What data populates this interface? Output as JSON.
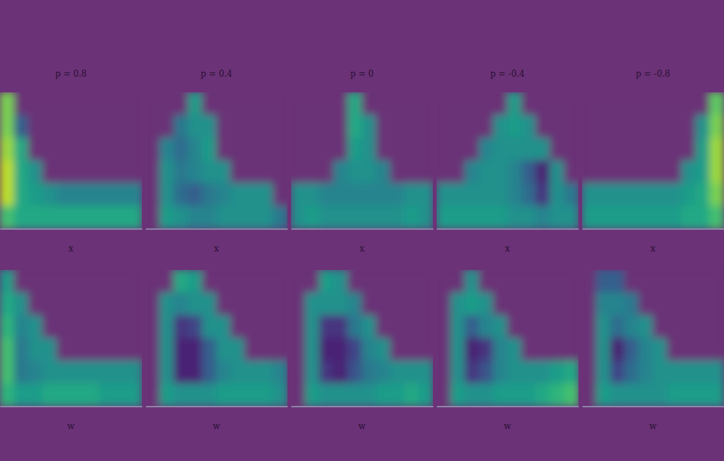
{
  "chart_data": [
    {
      "type": "heatmap",
      "title": "p = 0.8",
      "x_label": "x",
      "color": "viridis",
      "zlim": [
        0,
        1
      ],
      "tick_labels": false,
      "cells": [
        [
          0.8,
          0,
          0,
          0,
          0,
          0,
          0,
          0,
          0,
          0
        ],
        [
          0.8,
          0.3,
          0,
          0,
          0,
          0,
          0,
          0,
          0,
          0
        ],
        [
          0.85,
          0.6,
          0,
          0,
          0,
          0,
          0,
          0,
          0,
          0
        ],
        [
          0.9,
          0.6,
          0.5,
          0,
          0,
          0,
          0,
          0,
          0,
          0
        ],
        [
          0.9,
          0.6,
          0.55,
          0.5,
          0.45,
          0.45,
          0.45,
          0.45,
          0.45,
          0.45
        ],
        [
          0.7,
          0.6,
          0.6,
          0.6,
          0.6,
          0.6,
          0.6,
          0.6,
          0.6,
          0.6
        ]
      ]
    },
    {
      "type": "heatmap",
      "title": "p = 0.4",
      "x_label": "x",
      "color": "viridis",
      "zlim": [
        0,
        1
      ],
      "tick_labels": false,
      "cells": [
        [
          0,
          0,
          0,
          0.55,
          0,
          0,
          0,
          0,
          0,
          0
        ],
        [
          0,
          0,
          0.4,
          0.5,
          0.5,
          0,
          0,
          0,
          0,
          0
        ],
        [
          0,
          0.45,
          0.35,
          0.45,
          0.55,
          0,
          0,
          0,
          0,
          0
        ],
        [
          0,
          0.5,
          0.4,
          0.45,
          0.5,
          0.5,
          0,
          0,
          0,
          0
        ],
        [
          0,
          0.5,
          0.35,
          0.3,
          0.4,
          0.45,
          0.5,
          0.5,
          0.5,
          0
        ],
        [
          0,
          0.55,
          0.5,
          0.45,
          0.45,
          0.5,
          0.5,
          0.5,
          0.5,
          0.4
        ]
      ]
    },
    {
      "type": "heatmap",
      "title": "p = 0",
      "x_label": "x",
      "color": "viridis",
      "zlim": [
        0,
        1
      ],
      "tick_labels": false,
      "cells": [
        [
          0,
          0,
          0,
          0,
          0.6,
          0,
          0,
          0,
          0,
          0
        ],
        [
          0,
          0,
          0,
          0,
          0.6,
          0.5,
          0,
          0,
          0,
          0
        ],
        [
          0,
          0,
          0,
          0,
          0.55,
          0.5,
          0,
          0,
          0,
          0
        ],
        [
          0,
          0,
          0,
          0.45,
          0.5,
          0.5,
          0.45,
          0,
          0,
          0
        ],
        [
          0.5,
          0.5,
          0.45,
          0.45,
          0.45,
          0.45,
          0.45,
          0.45,
          0.5,
          0.5
        ],
        [
          0.5,
          0.55,
          0.5,
          0.5,
          0.5,
          0.5,
          0.5,
          0.5,
          0.55,
          0.5
        ]
      ]
    },
    {
      "type": "heatmap",
      "title": "p = -0.4",
      "x_label": "x",
      "color": "viridis",
      "zlim": [
        0,
        1
      ],
      "tick_labels": false,
      "cells": [
        [
          0,
          0,
          0,
          0,
          0,
          0.55,
          0,
          0,
          0,
          0
        ],
        [
          0,
          0,
          0,
          0,
          0.5,
          0.55,
          0.5,
          0,
          0,
          0
        ],
        [
          0,
          0,
          0,
          0.45,
          0.5,
          0.5,
          0.5,
          0.5,
          0,
          0
        ],
        [
          0,
          0,
          0.45,
          0.5,
          0.5,
          0.45,
          0.3,
          0.1,
          0.5,
          0
        ],
        [
          0.5,
          0.5,
          0.5,
          0.5,
          0.5,
          0.45,
          0.35,
          0.15,
          0.5,
          0.4
        ],
        [
          0.55,
          0.55,
          0.55,
          0.55,
          0.55,
          0.5,
          0.5,
          0.45,
          0.5,
          0.5
        ]
      ]
    },
    {
      "type": "heatmap",
      "title": "p = -0.8",
      "x_label": "x",
      "color": "viridis",
      "zlim": [
        0,
        1
      ],
      "tick_labels": false,
      "cells": [
        [
          0,
          0,
          0,
          0,
          0,
          0,
          0,
          0,
          0,
          0.75
        ],
        [
          0,
          0,
          0,
          0,
          0,
          0,
          0,
          0,
          0.5,
          0.8
        ],
        [
          0,
          0,
          0,
          0,
          0,
          0,
          0,
          0,
          0.55,
          0.85
        ],
        [
          0,
          0,
          0,
          0,
          0,
          0,
          0,
          0.5,
          0.55,
          0.85
        ],
        [
          0.5,
          0.5,
          0.5,
          0.5,
          0.5,
          0.5,
          0.5,
          0.55,
          0.6,
          0.8
        ],
        [
          0.55,
          0.55,
          0.55,
          0.55,
          0.55,
          0.55,
          0.55,
          0.6,
          0.6,
          0.7
        ]
      ]
    },
    {
      "type": "heatmap",
      "x_label": "w",
      "color": "viridis",
      "zlim": [
        0,
        1
      ],
      "tick_labels": false,
      "cells": [
        [
          0.55,
          0,
          0,
          0,
          0,
          0,
          0,
          0,
          0,
          0
        ],
        [
          0.6,
          0.5,
          0,
          0,
          0,
          0,
          0,
          0,
          0,
          0
        ],
        [
          0.65,
          0.45,
          0.5,
          0,
          0,
          0,
          0,
          0,
          0,
          0
        ],
        [
          0.7,
          0.4,
          0.5,
          0.5,
          0,
          0,
          0,
          0,
          0,
          0
        ],
        [
          0.7,
          0.4,
          0.45,
          0.5,
          0.5,
          0.5,
          0.5,
          0.5,
          0.5,
          0.5
        ],
        [
          0.65,
          0.55,
          0.55,
          0.6,
          0.6,
          0.6,
          0.6,
          0.55,
          0.55,
          0.55
        ]
      ]
    },
    {
      "type": "heatmap",
      "x_label": "w",
      "color": "viridis",
      "zlim": [
        0,
        1
      ],
      "tick_labels": false,
      "cells": [
        [
          0,
          0,
          0.6,
          0.55,
          0,
          0,
          0,
          0,
          0,
          0
        ],
        [
          0,
          0.5,
          0.45,
          0.5,
          0.5,
          0,
          0,
          0,
          0,
          0
        ],
        [
          0,
          0.5,
          0.15,
          0.2,
          0.5,
          0.5,
          0,
          0,
          0,
          0
        ],
        [
          0,
          0.5,
          0.1,
          0.1,
          0.3,
          0.5,
          0.5,
          0,
          0,
          0
        ],
        [
          0,
          0.5,
          0.1,
          0.1,
          0.3,
          0.45,
          0.5,
          0.5,
          0.5,
          0.45
        ],
        [
          0,
          0.55,
          0.5,
          0.5,
          0.5,
          0.55,
          0.55,
          0.55,
          0.55,
          0.5
        ]
      ]
    },
    {
      "type": "heatmap",
      "x_label": "w",
      "color": "viridis",
      "zlim": [
        0,
        1
      ],
      "tick_labels": false,
      "cells": [
        [
          0,
          0,
          0.55,
          0.5,
          0,
          0,
          0,
          0,
          0,
          0
        ],
        [
          0,
          0.5,
          0.5,
          0.5,
          0.45,
          0,
          0,
          0,
          0,
          0
        ],
        [
          0,
          0.5,
          0.15,
          0.15,
          0.4,
          0.5,
          0,
          0,
          0,
          0
        ],
        [
          0,
          0.5,
          0.1,
          0.1,
          0.2,
          0.45,
          0.5,
          0,
          0,
          0
        ],
        [
          0,
          0.5,
          0.15,
          0.1,
          0.25,
          0.4,
          0.45,
          0.5,
          0.5,
          0.5
        ],
        [
          0,
          0.55,
          0.5,
          0.5,
          0.5,
          0.5,
          0.55,
          0.55,
          0.6,
          0.55
        ]
      ]
    },
    {
      "type": "heatmap",
      "x_label": "w",
      "color": "viridis",
      "zlim": [
        0,
        1
      ],
      "tick_labels": false,
      "cells": [
        [
          0,
          0,
          0.5,
          0,
          0,
          0,
          0,
          0,
          0,
          0
        ],
        [
          0,
          0.5,
          0.55,
          0.5,
          0,
          0,
          0,
          0,
          0,
          0
        ],
        [
          0,
          0.5,
          0.3,
          0.45,
          0.5,
          0,
          0,
          0,
          0,
          0
        ],
        [
          0,
          0.5,
          0.1,
          0.15,
          0.45,
          0.5,
          0,
          0,
          0,
          0
        ],
        [
          0,
          0.5,
          0.15,
          0.25,
          0.45,
          0.5,
          0.5,
          0.5,
          0.55,
          0.6
        ],
        [
          0,
          0.55,
          0.5,
          0.5,
          0.55,
          0.55,
          0.55,
          0.6,
          0.65,
          0.7
        ]
      ]
    },
    {
      "type": "heatmap",
      "x_label": "w",
      "color": "viridis",
      "zlim": [
        0,
        1
      ],
      "tick_labels": false,
      "cells": [
        [
          0,
          0.3,
          0.3,
          0,
          0,
          0,
          0,
          0,
          0,
          0
        ],
        [
          0,
          0.45,
          0.45,
          0.4,
          0,
          0,
          0,
          0,
          0,
          0
        ],
        [
          0,
          0.5,
          0.35,
          0.45,
          0.5,
          0,
          0,
          0,
          0,
          0
        ],
        [
          0,
          0.5,
          0.1,
          0.3,
          0.45,
          0.5,
          0,
          0,
          0,
          0
        ],
        [
          0,
          0.5,
          0.2,
          0.35,
          0.45,
          0.5,
          0.5,
          0.5,
          0.5,
          0.5
        ],
        [
          0,
          0.55,
          0.5,
          0.5,
          0.5,
          0.5,
          0.55,
          0.55,
          0.55,
          0.55
        ]
      ]
    }
  ]
}
